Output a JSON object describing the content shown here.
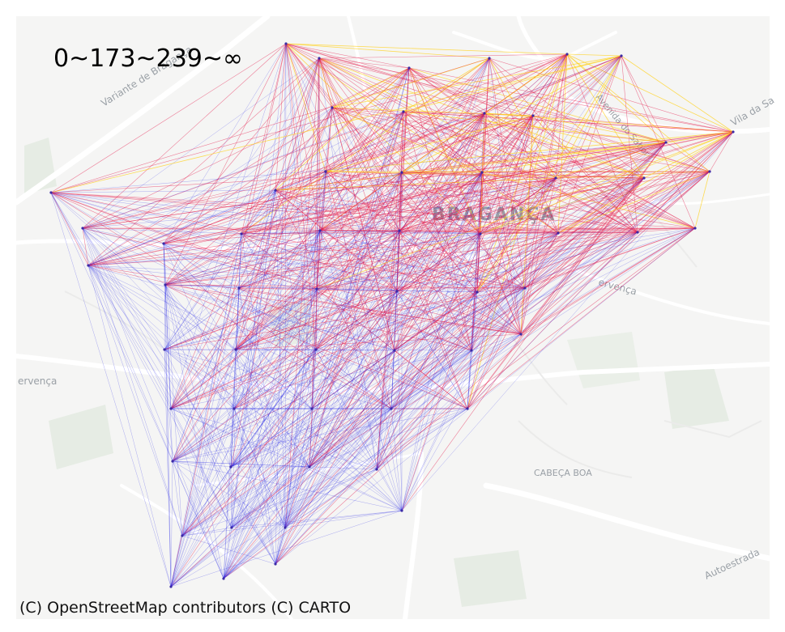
{
  "legend": {
    "text": "0~173~239~∞"
  },
  "attribution": "(C) OpenStreetMap contributors (C) CARTO",
  "place_labels": {
    "city": "BRAGANÇA",
    "district": "CABEÇA BOA",
    "road_1": "Variante de Bragança",
    "road_2": "Autoestrada",
    "road_3": "Vila da Sa",
    "road_4": "ervença",
    "road_5": "ervença",
    "road_6": "Avenida do Sabor"
  },
  "colors": {
    "low": "#1f1fe6",
    "mid": "#e6194b",
    "high": "#ffd21f",
    "map_background": "#f5f5f4",
    "road": "#ffffff",
    "water": "#c9d3dc",
    "park": "#e3ebe1"
  },
  "flow_classes": [
    "0~173",
    "173~239",
    "239~∞"
  ]
}
